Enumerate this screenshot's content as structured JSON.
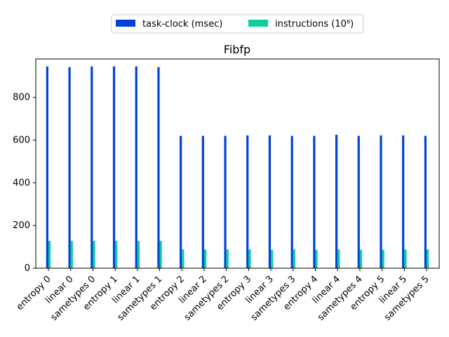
{
  "chart_data": {
    "type": "bar",
    "title": "Fibfp",
    "xlabel": "",
    "ylabel": "",
    "ylim": [
      0,
      980
    ],
    "yticks": [
      0,
      200,
      400,
      600,
      800
    ],
    "grid": false,
    "legend_position": "top-center",
    "categories": [
      "entropy 0",
      "linear 0",
      "sametypes 0",
      "entropy 1",
      "linear 1",
      "sametypes 1",
      "entropy 2",
      "linear 2",
      "sametypes 2",
      "entropy 3",
      "linear 3",
      "sametypes 3",
      "entropy 4",
      "linear 4",
      "sametypes 4",
      "entropy 5",
      "linear 5",
      "sametypes 5"
    ],
    "series": [
      {
        "name": "task-clock (msec)",
        "color": "#0043d6",
        "values": [
          945,
          942,
          945,
          945,
          945,
          942,
          620,
          620,
          620,
          622,
          622,
          620,
          620,
          625,
          620,
          622,
          622,
          620
        ]
      },
      {
        "name": "instructions (10⁸)",
        "color": "#0ccf9a",
        "values": [
          128,
          128,
          128,
          128,
          128,
          128,
          88,
          88,
          88,
          88,
          86,
          88,
          86,
          88,
          86,
          86,
          88,
          88
        ]
      }
    ]
  }
}
